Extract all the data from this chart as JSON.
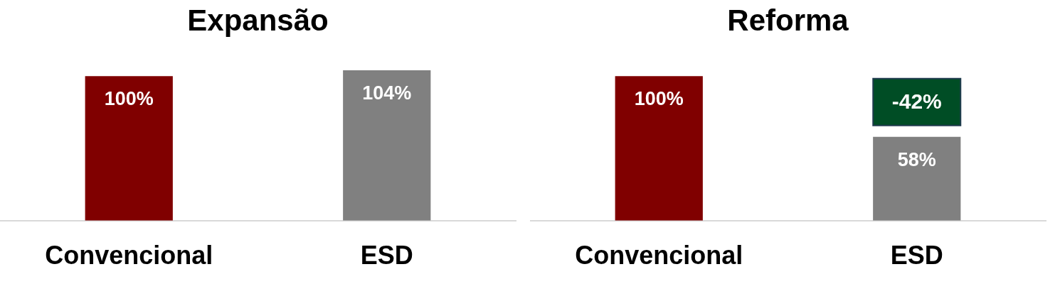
{
  "chart_data": [
    {
      "type": "bar",
      "title": "Expansão",
      "categories": [
        "Convencional",
        "ESD"
      ],
      "values": [
        100,
        104
      ],
      "value_labels": [
        "100%",
        "104%"
      ],
      "colors": [
        "#800000",
        "#808080"
      ],
      "legend": false,
      "grid": false
    },
    {
      "type": "bar",
      "title": "Reforma",
      "categories": [
        "Convencional",
        "ESD"
      ],
      "values": [
        100,
        58
      ],
      "value_labels": [
        "100%",
        "58%"
      ],
      "colors": [
        "#800000",
        "#808080"
      ],
      "legend": false,
      "grid": false,
      "annotations": [
        "-42%"
      ]
    }
  ]
}
